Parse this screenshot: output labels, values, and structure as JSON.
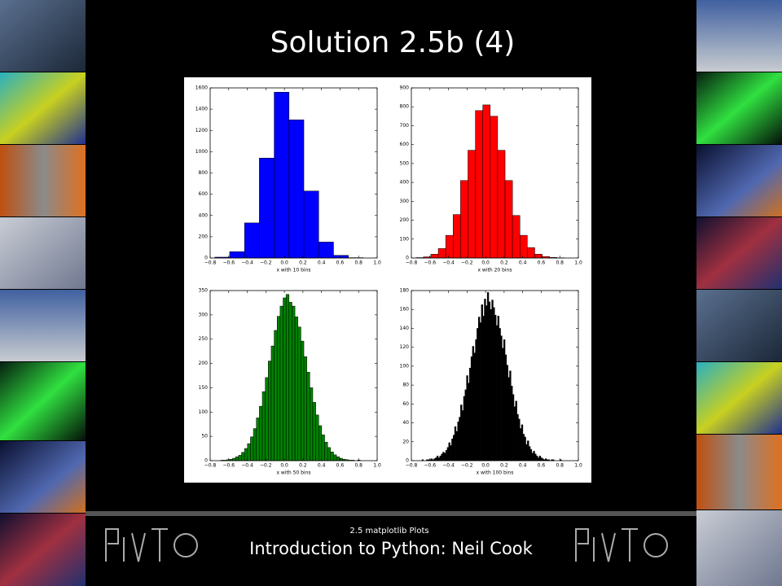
{
  "slide": {
    "title": "Solution 2.5b (4)",
    "caption": "2.5 matplotlib Plots",
    "footer": "Introduction to Python: Neil Cook"
  },
  "chart_data": [
    {
      "type": "histogram",
      "xlabel": "x with 10 bins",
      "color": "#0000ff",
      "bins": [
        -0.75,
        -0.59,
        -0.43,
        -0.27,
        -0.11,
        0.05,
        0.21,
        0.37,
        0.53,
        0.69,
        0.85
      ],
      "values": [
        8,
        60,
        330,
        940,
        1560,
        1300,
        630,
        150,
        25,
        3
      ],
      "xlim": [
        -0.8,
        1.0
      ],
      "xticks": [
        {
          "value": -0.8,
          "label": "−0.8"
        },
        {
          "value": -0.6,
          "label": "−0.6"
        },
        {
          "value": -0.4,
          "label": "−0.4"
        },
        {
          "value": -0.2,
          "label": "−0.2"
        },
        {
          "value": 0,
          "label": "0.0"
        },
        0.2,
        0.4,
        0.6,
        0.8,
        {
          "value": 1,
          "label": "1.0"
        }
      ],
      "ylim": [
        0,
        1600
      ],
      "yticks": [
        0,
        200,
        400,
        600,
        800,
        1000,
        1200,
        1400,
        1600
      ]
    },
    {
      "type": "histogram",
      "xlabel": "x with 20 bins",
      "color": "#ff0000",
      "bins": [
        -0.75,
        -0.67,
        -0.59,
        -0.51,
        -0.43,
        -0.35,
        -0.27,
        -0.19,
        -0.11,
        -0.03,
        0.05,
        0.13,
        0.21,
        0.29,
        0.37,
        0.45,
        0.53,
        0.61,
        0.69,
        0.77,
        0.85
      ],
      "values": [
        2,
        6,
        20,
        50,
        120,
        230,
        410,
        570,
        780,
        810,
        750,
        570,
        410,
        225,
        120,
        55,
        20,
        8,
        3,
        1
      ],
      "xlim": [
        -0.8,
        1.0
      ],
      "xticks": [
        {
          "value": -0.8,
          "label": "−0.8"
        },
        {
          "value": -0.6,
          "label": "−0.6"
        },
        {
          "value": -0.4,
          "label": "−0.4"
        },
        {
          "value": -0.2,
          "label": "−0.2"
        },
        {
          "value": 0,
          "label": "0.0"
        },
        0.2,
        0.4,
        0.6,
        0.8,
        {
          "value": 1,
          "label": "1.0"
        }
      ],
      "ylim": [
        0,
        900
      ],
      "yticks": [
        0,
        100,
        200,
        300,
        400,
        500,
        600,
        700,
        800,
        900
      ]
    },
    {
      "type": "histogram",
      "xlabel": "x with 50 bins",
      "color": "#008000",
      "bins": [
        -0.75,
        -0.718,
        -0.686,
        -0.654,
        -0.622,
        -0.59,
        -0.558,
        -0.526,
        -0.494,
        -0.462,
        -0.43,
        -0.398,
        -0.366,
        -0.334,
        -0.302,
        -0.27,
        -0.238,
        -0.206,
        -0.174,
        -0.142,
        -0.11,
        -0.078,
        -0.046,
        -0.014,
        0.018,
        0.05,
        0.082,
        0.114,
        0.146,
        0.178,
        0.21,
        0.242,
        0.274,
        0.306,
        0.338,
        0.37,
        0.402,
        0.434,
        0.466,
        0.498,
        0.53,
        0.562,
        0.594,
        0.626,
        0.658,
        0.69,
        0.722,
        0.754,
        0.786,
        0.818,
        0.85
      ],
      "values": [
        0,
        0,
        1,
        1,
        2,
        3,
        5,
        8,
        11,
        17,
        25,
        35,
        49,
        66,
        88,
        112,
        142,
        171,
        205,
        236,
        268,
        297,
        318,
        335,
        342,
        326,
        318,
        296,
        275,
        246,
        214,
        182,
        150,
        120,
        94,
        72,
        53,
        38,
        27,
        18,
        12,
        8,
        5,
        3,
        2,
        1,
        1,
        0,
        1,
        0
      ],
      "xlim": [
        -0.8,
        1.0
      ],
      "xticks": [
        {
          "value": -0.8,
          "label": "−0.8"
        },
        {
          "value": -0.6,
          "label": "−0.6"
        },
        {
          "value": -0.4,
          "label": "−0.4"
        },
        {
          "value": -0.2,
          "label": "−0.2"
        },
        {
          "value": 0,
          "label": "0.0"
        },
        0.2,
        0.4,
        0.6,
        0.8,
        {
          "value": 1,
          "label": "1.0"
        }
      ],
      "ylim": [
        0,
        350
      ],
      "yticks": [
        0,
        50,
        100,
        150,
        200,
        250,
        300,
        350
      ]
    },
    {
      "type": "histogram",
      "xlabel": "x with 100 bins",
      "color": "#000000",
      "bins": [
        -0.75,
        -0.734,
        -0.718,
        -0.702,
        -0.686,
        -0.67,
        -0.654,
        -0.638,
        -0.622,
        -0.606,
        -0.59,
        -0.574,
        -0.558,
        -0.542,
        -0.526,
        -0.51,
        -0.494,
        -0.478,
        -0.462,
        -0.446,
        -0.43,
        -0.414,
        -0.398,
        -0.382,
        -0.366,
        -0.35,
        -0.334,
        -0.318,
        -0.302,
        -0.286,
        -0.27,
        -0.254,
        -0.238,
        -0.222,
        -0.206,
        -0.19,
        -0.174,
        -0.158,
        -0.142,
        -0.126,
        -0.11,
        -0.094,
        -0.078,
        -0.062,
        -0.046,
        -0.03,
        -0.014,
        0.002,
        0.018,
        0.034,
        0.05,
        0.066,
        0.082,
        0.098,
        0.114,
        0.13,
        0.146,
        0.162,
        0.178,
        0.194,
        0.21,
        0.226,
        0.242,
        0.258,
        0.274,
        0.29,
        0.306,
        0.322,
        0.338,
        0.354,
        0.37,
        0.386,
        0.402,
        0.418,
        0.434,
        0.45,
        0.466,
        0.482,
        0.498,
        0.514,
        0.53,
        0.546,
        0.562,
        0.578,
        0.594,
        0.61,
        0.626,
        0.642,
        0.658,
        0.674,
        0.69,
        0.706,
        0.722,
        0.738,
        0.754,
        0.77,
        0.786,
        0.802,
        0.818,
        0.834,
        0.85
      ],
      "values": [
        0,
        0,
        0,
        0,
        1,
        0,
        0,
        1,
        1,
        1,
        2,
        1,
        2,
        3,
        5,
        3,
        5,
        7,
        9,
        8,
        11,
        14,
        19,
        16,
        23,
        27,
        36,
        31,
        41,
        46,
        59,
        53,
        68,
        75,
        90,
        82,
        98,
        110,
        121,
        114,
        128,
        140,
        152,
        146,
        165,
        153,
        171,
        164,
        178,
        168,
        160,
        170,
        162,
        154,
        143,
        153,
        140,
        132,
        119,
        128,
        112,
        101,
        88,
        95,
        79,
        70,
        57,
        63,
        49,
        44,
        34,
        38,
        28,
        25,
        17,
        21,
        15,
        12,
        8,
        10,
        7,
        5,
        3,
        5,
        3,
        2,
        1,
        2,
        1,
        1,
        0,
        1,
        1,
        0,
        0,
        0,
        0,
        1,
        0,
        0
      ],
      "xlim": [
        -0.8,
        1.0
      ],
      "xticks": [
        {
          "value": -0.8,
          "label": "−0.8"
        },
        {
          "value": -0.6,
          "label": "−0.6"
        },
        {
          "value": -0.4,
          "label": "−0.4"
        },
        {
          "value": -0.2,
          "label": "−0.2"
        },
        {
          "value": 0,
          "label": "0.0"
        },
        0.2,
        0.4,
        0.6,
        0.8,
        {
          "value": 1,
          "label": "1.0"
        }
      ],
      "ylim": [
        0,
        180
      ],
      "yticks": [
        0,
        20,
        40,
        60,
        80,
        100,
        120,
        140,
        160,
        180
      ]
    }
  ]
}
